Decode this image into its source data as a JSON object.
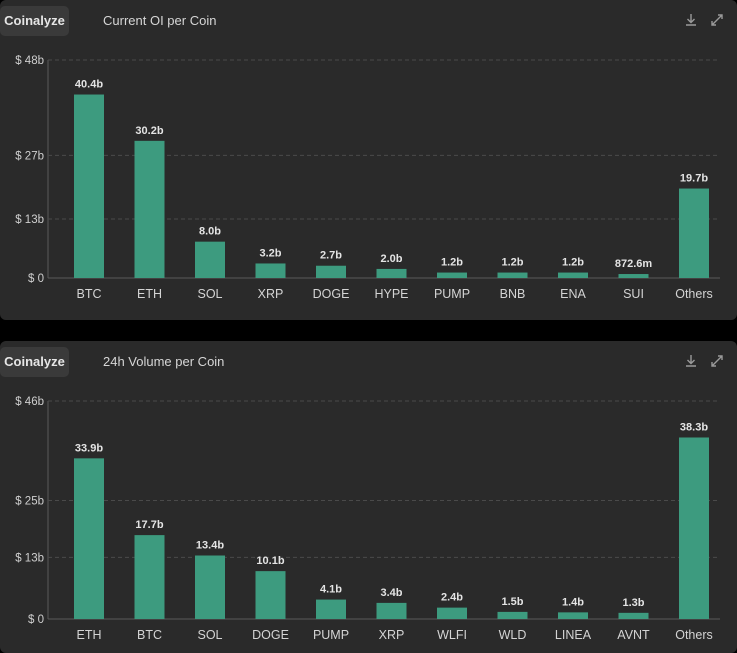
{
  "colors": {
    "bar": "#3d9b7f",
    "grid": "#4a4a4a",
    "panel": "#2a2a2a"
  },
  "icons": {
    "download": "download-icon",
    "expand": "expand-icon"
  },
  "chart_data": [
    {
      "type": "bar",
      "brand": "Coinalyze",
      "title": "Current OI per Coin",
      "ylim": [
        0,
        48
      ],
      "yticks": [
        0,
        13,
        27,
        48
      ],
      "ytick_labels": [
        "$ 0",
        "$ 13b",
        "$ 27b",
        "$ 48b"
      ],
      "categories": [
        "BTC",
        "ETH",
        "SOL",
        "XRP",
        "DOGE",
        "HYPE",
        "PUMP",
        "BNB",
        "ENA",
        "SUI",
        "Others"
      ],
      "values": [
        40.4,
        30.2,
        8.0,
        3.2,
        2.7,
        2.0,
        1.2,
        1.2,
        1.2,
        0.8726,
        19.7
      ],
      "data_labels": [
        "40.4b",
        "30.2b",
        "8.0b",
        "3.2b",
        "2.7b",
        "2.0b",
        "1.2b",
        "1.2b",
        "1.2b",
        "872.6m",
        "19.7b"
      ],
      "grid": true
    },
    {
      "type": "bar",
      "brand": "Coinalyze",
      "title": "24h Volume per Coin",
      "ylim": [
        0,
        46
      ],
      "yticks": [
        0,
        13,
        25,
        46
      ],
      "ytick_labels": [
        "$ 0",
        "$ 13b",
        "$ 25b",
        "$ 46b"
      ],
      "categories": [
        "ETH",
        "BTC",
        "SOL",
        "DOGE",
        "PUMP",
        "XRP",
        "WLFI",
        "WLD",
        "LINEA",
        "AVNT",
        "Others"
      ],
      "values": [
        33.9,
        17.7,
        13.4,
        10.1,
        4.1,
        3.4,
        2.4,
        1.5,
        1.4,
        1.3,
        38.3
      ],
      "data_labels": [
        "33.9b",
        "17.7b",
        "13.4b",
        "10.1b",
        "4.1b",
        "3.4b",
        "2.4b",
        "1.5b",
        "1.4b",
        "1.3b",
        "38.3b"
      ],
      "grid": true
    }
  ]
}
